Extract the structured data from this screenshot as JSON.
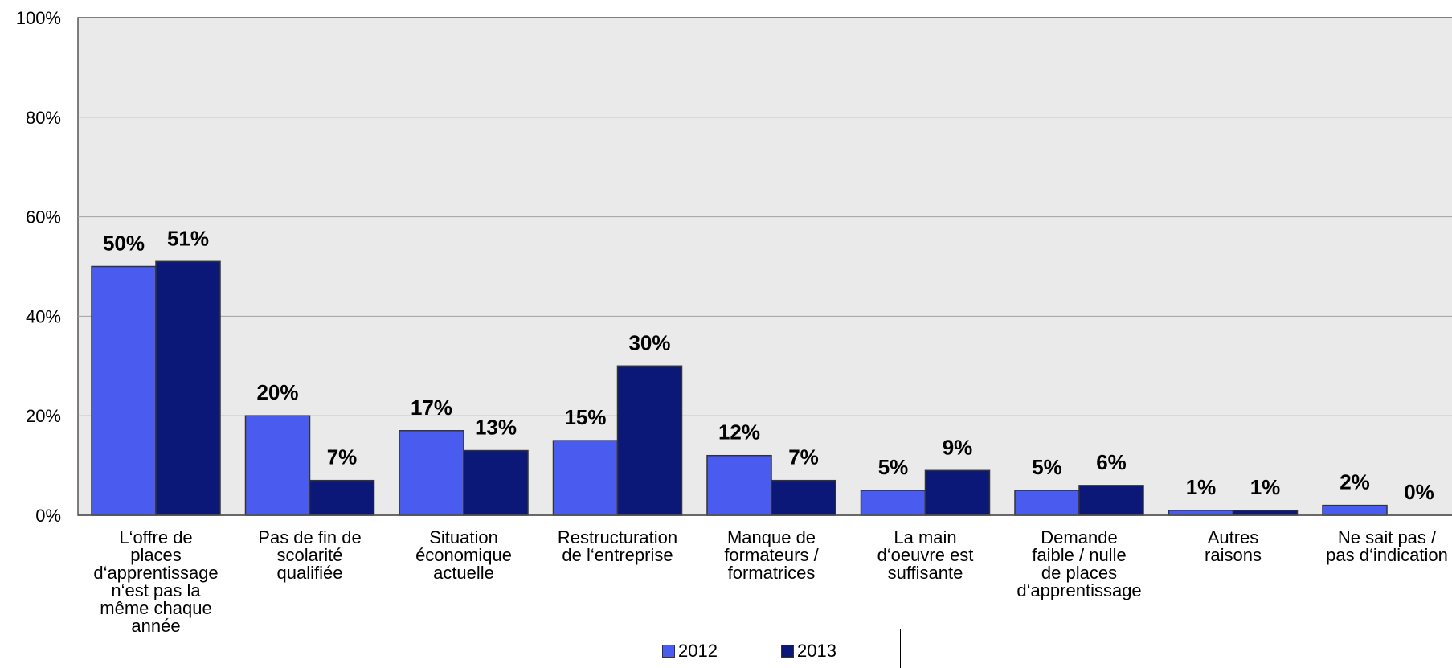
{
  "colors": {
    "series_2012": "#4A5CF0",
    "series_2013": "#0C1878",
    "plot_background": "#EAEAEA",
    "gridline": "#A0A0A0",
    "axis": "#555555"
  },
  "chart_data": {
    "type": "bar",
    "title": "",
    "xlabel": "",
    "ylabel": "",
    "ylim": [
      0,
      100
    ],
    "y_ticks": [
      "0%",
      "20%",
      "40%",
      "60%",
      "80%",
      "100%"
    ],
    "grid": true,
    "legend_position": "bottom-center",
    "categories": [
      [
        "L‘offre de",
        "places",
        "d‘apprentissage",
        "n‘est pas la",
        "même chaque",
        "année"
      ],
      [
        "Pas de fin de",
        "scolarité",
        "qualifiée"
      ],
      [
        "Situation",
        "économique",
        "actuelle"
      ],
      [
        "Restructuration",
        "de l‘entreprise"
      ],
      [
        "Manque de",
        "formateurs /",
        "formatrices"
      ],
      [
        "La main",
        "d‘oeuvre est",
        "suffisante"
      ],
      [
        "Demande",
        "faible / nulle",
        "de places",
        "d‘apprentissage"
      ],
      [
        "Autres",
        "raisons"
      ],
      [
        "Ne sait pas /",
        "pas d‘indication"
      ]
    ],
    "series": [
      {
        "name": "2012",
        "values": [
          50,
          20,
          17,
          15,
          12,
          5,
          5,
          1,
          2
        ],
        "labels": [
          "50%",
          "20%",
          "17%",
          "15%",
          "12%",
          "5%",
          "5%",
          "1%",
          "2%"
        ]
      },
      {
        "name": "2013",
        "values": [
          51,
          7,
          13,
          30,
          7,
          9,
          6,
          1,
          0
        ],
        "labels": [
          "51%",
          "7%",
          "13%",
          "30%",
          "7%",
          "9%",
          "6%",
          "1%",
          "0%"
        ]
      }
    ]
  }
}
